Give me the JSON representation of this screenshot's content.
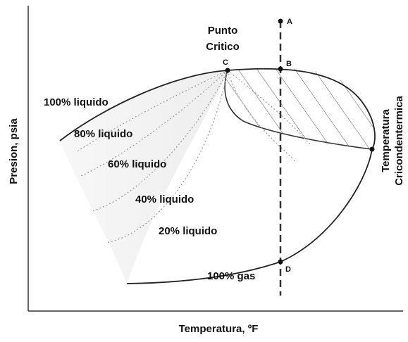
{
  "axes": {
    "y_label": "Presion, psia",
    "x_label": "Temperatura, ºF"
  },
  "critical_point": [
    "Punto",
    "Critico"
  ],
  "cricondentherm": [
    "Temperatura",
    "Cricondentermica"
  ],
  "points": [
    "A",
    "B",
    "C",
    "D"
  ],
  "quality_lines": [
    "100% liquido",
    "80% liquido",
    "60% liquido",
    "40% liquido",
    "20% liquido",
    "100% gas"
  ]
}
